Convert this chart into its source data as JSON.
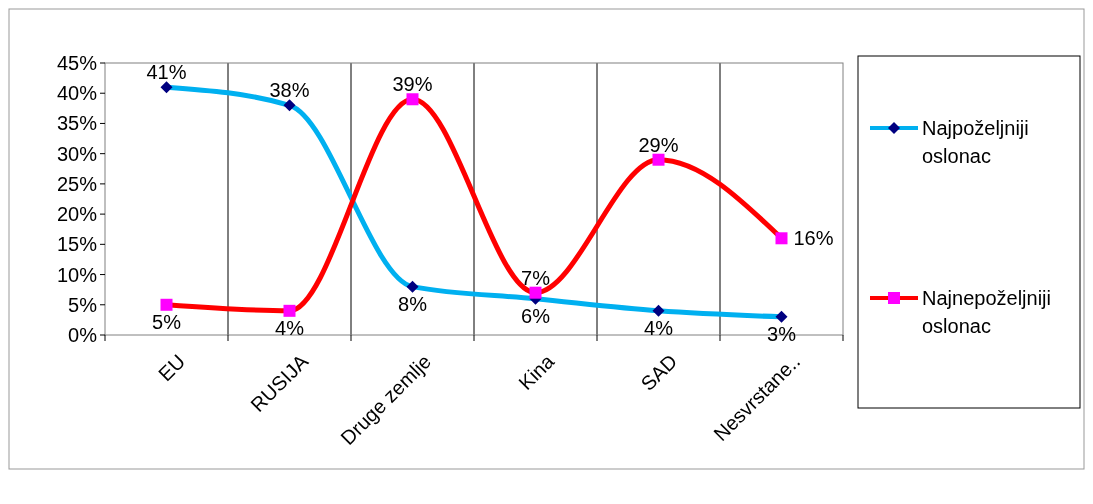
{
  "chart_data": {
    "type": "line",
    "categories": [
      "EU",
      "RUSIJA",
      "Druge zemlje",
      "Kina",
      "SAD",
      "Nesvrstane.."
    ],
    "series": [
      {
        "name": "Najpoželjniji oslonac",
        "color": "#00b0f0",
        "marker": "diamond",
        "values": [
          41,
          38,
          8,
          6,
          4,
          3
        ],
        "value_labels": [
          "41%",
          "38%",
          "8%",
          "6%",
          "4%",
          "3%"
        ]
      },
      {
        "name": "Najnepoželjniji oslonac",
        "color": "#ff0000",
        "marker": "square",
        "values": [
          5,
          4,
          39,
          7,
          29,
          16
        ],
        "value_labels": [
          "5%",
          "4%",
          "39%",
          "7%",
          "29%",
          "16%"
        ]
      }
    ],
    "ylim": [
      0,
      45
    ],
    "yticks": [
      {
        "value": 0,
        "label": "0%"
      },
      {
        "value": 5,
        "label": "5%"
      },
      {
        "value": 10,
        "label": "10%"
      },
      {
        "value": 15,
        "label": "15%"
      },
      {
        "value": 20,
        "label": "20%"
      },
      {
        "value": 25,
        "label": "25%"
      },
      {
        "value": 30,
        "label": "30%"
      },
      {
        "value": 35,
        "label": "35%"
      },
      {
        "value": 40,
        "label": "40%"
      },
      {
        "value": 45,
        "label": "45%"
      }
    ],
    "grid": "x",
    "legend": "right"
  }
}
